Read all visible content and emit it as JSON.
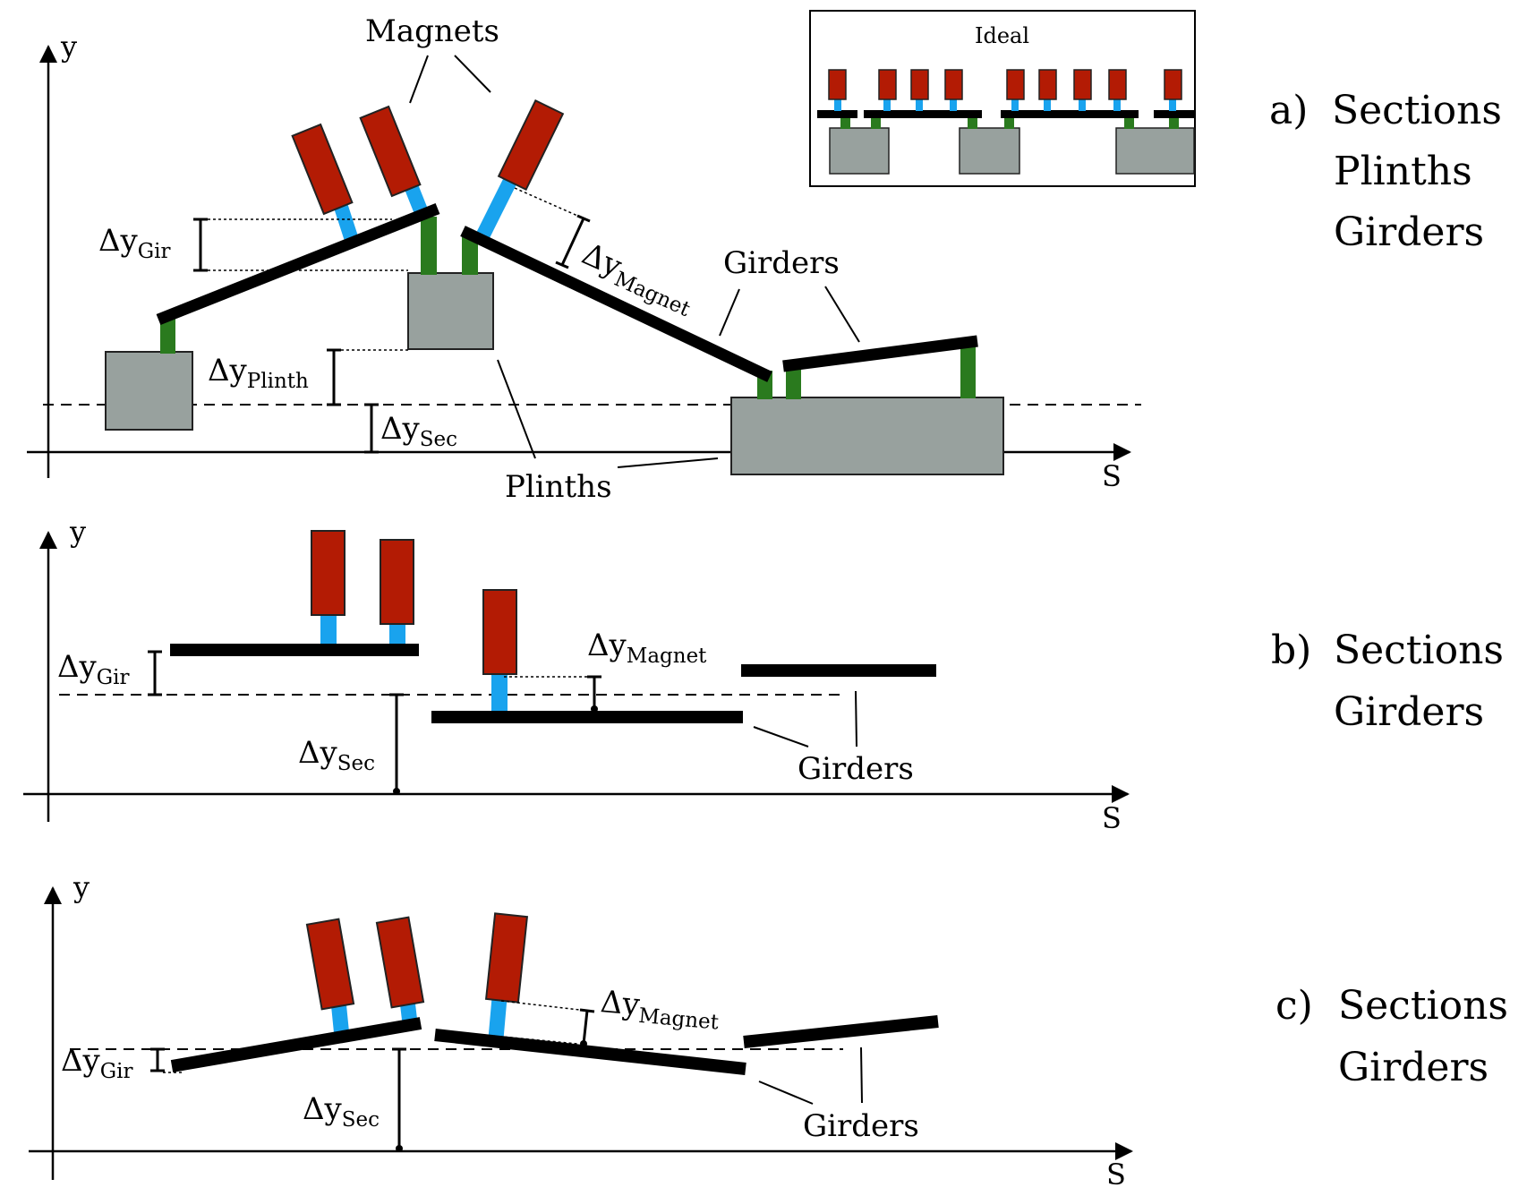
{
  "axes": {
    "y_label": "y",
    "x_label": "S"
  },
  "labels": {
    "magnets": "Magnets",
    "girders": "Girders",
    "plinths": "Plinths",
    "ideal": "Ideal",
    "delta": "Δy",
    "sub_gir": "Gir",
    "sub_plinth": "Plinth",
    "sub_sec": "Sec",
    "sub_magnet": "Magnet"
  },
  "panels": [
    {
      "letter": "a)",
      "items": [
        "Sections",
        "Plinths",
        "Girders"
      ]
    },
    {
      "letter": "b)",
      "items": [
        "Sections",
        "Girders"
      ]
    },
    {
      "letter": "c)",
      "items": [
        "Sections",
        "Girders"
      ]
    }
  ],
  "colors": {
    "magnet": "#b31b04",
    "magnet_stand": "#19a3ee",
    "girder": "#000000",
    "plinth_support": "#2a7a1e",
    "plinth": "#98a19e"
  }
}
